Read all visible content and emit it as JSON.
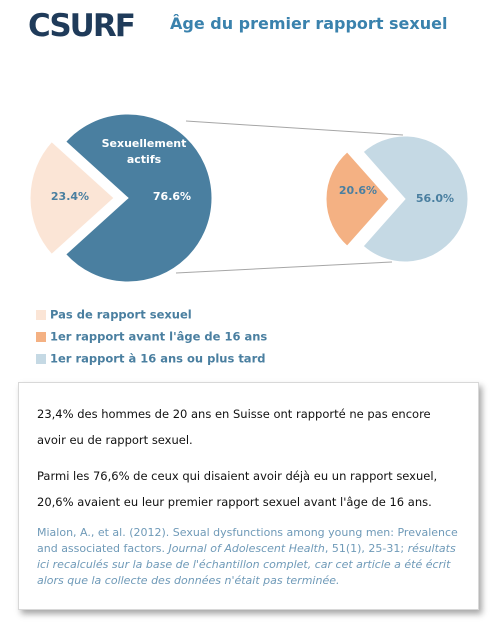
{
  "logo": "CSURF",
  "chart_data": {
    "type": "pie",
    "title": "Âge du premier rapport sexuel",
    "pie": {
      "categories": [
        null,
        "Sexuellement actifs"
      ],
      "values": [
        23.4,
        76.6
      ],
      "value_labels": [
        "23.4%",
        "76.6%"
      ],
      "colors": [
        "#fbe5d6",
        "#4a7fa0"
      ]
    },
    "sub_pie": {
      "values": [
        20.6,
        56.0
      ],
      "value_labels": [
        "20.6%",
        "56.0%"
      ],
      "colors": [
        "#f4b183",
        "#c5d9e4"
      ]
    },
    "legend": [
      {
        "name": "Pas de rapport sexuel",
        "color": "#fbe5d6"
      },
      {
        "name": "1er rapport avant  l'âge de 16 ans",
        "color": "#f4b183"
      },
      {
        "name": "1er rapport à 16 ans ou plus tard",
        "color": "#c5d9e4"
      }
    ]
  },
  "text_box": {
    "paragraphs": [
      "23,4% des hommes de 20 ans en Suisse ont rapporté ne pas encore avoir eu de rapport sexuel.",
      "Parmi les 76,6% de ceux qui disaient avoir déjà eu un rapport sexuel, 20,6% avaient eu leur premier rapport sexuel avant l'âge de 16 ans."
    ],
    "citation": [
      "Mialon, A., et al. (2012). Sexual dysfunctions among young men: Prevalence and associated factors. ",
      "Journal of Adolescent Health",
      ", 51(1), 25-31; ",
      "résultats ici recalculés sur la base de l'échantillon complet, car cet article a été écrit alors que la collecte des données n'était pas terminée."
    ]
  }
}
